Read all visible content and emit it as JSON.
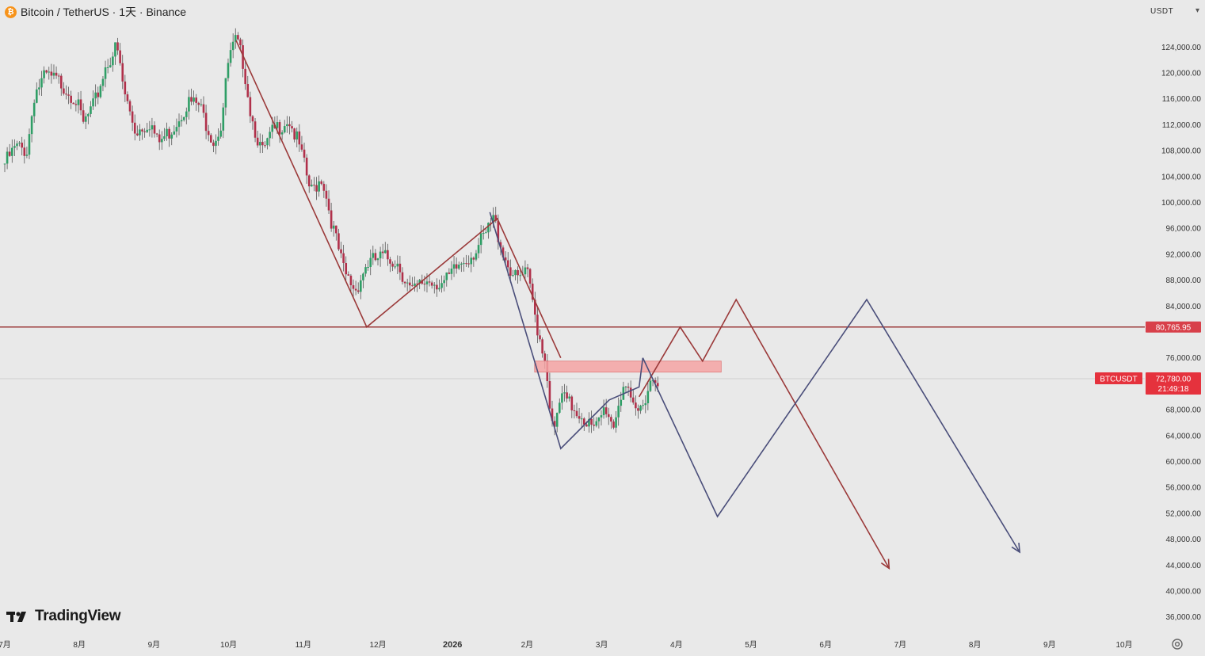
{
  "header": {
    "title": "Bitcoin / TetherUS · 1天 · Binance",
    "coin_icon": "bitcoin-icon",
    "coin_glyph": "₿"
  },
  "currency": {
    "label": "USDT",
    "caret": "▾"
  },
  "logo": {
    "text": "TradingView",
    "icon": "tradingview-logo-icon"
  },
  "chart_data": {
    "type": "candlestick",
    "symbol": "BTCUSDT",
    "exchange": "Binance",
    "interval": "1天",
    "quote_currency": "USDT",
    "y_axis": {
      "ticks": [
        124000,
        120000,
        116000,
        112000,
        108000,
        104000,
        100000,
        96000,
        92000,
        88000,
        84000,
        76000,
        68000,
        64000,
        60000,
        56000,
        52000,
        48000,
        44000,
        40000,
        36000
      ],
      "tick_labels": [
        "124,000.00",
        "120,000.00",
        "116,000.00",
        "112,000.00",
        "108,000.00",
        "104,000.00",
        "100,000.00",
        "96,000.00",
        "92,000.00",
        "88,000.00",
        "84,000.00",
        "76,000.00",
        "68,000.00",
        "64,000.00",
        "60,000.00",
        "56,000.00",
        "52,000.00",
        "48,000.00",
        "44,000.00",
        "40,000.00",
        "36,000.00"
      ],
      "range": [
        34000,
        130000
      ]
    },
    "x_axis": {
      "labels": [
        "7月",
        "8月",
        "9月",
        "10月",
        "11月",
        "12月",
        "2026",
        "2月",
        "3月",
        "4月",
        "5月",
        "6月",
        "7月",
        "8月",
        "9月",
        "10月"
      ],
      "bold_label": "2026",
      "range_months": [
        0,
        15.7
      ]
    },
    "price_series": [
      {
        "m": 0.0,
        "v": 106000
      },
      {
        "m": 0.15,
        "v": 108500
      },
      {
        "m": 0.3,
        "v": 108000
      },
      {
        "m": 0.4,
        "v": 117000
      },
      {
        "m": 0.55,
        "v": 119500
      },
      {
        "m": 0.75,
        "v": 118500
      },
      {
        "m": 0.95,
        "v": 116000
      },
      {
        "m": 1.05,
        "v": 112000
      },
      {
        "m": 1.2,
        "v": 115000
      },
      {
        "m": 1.35,
        "v": 121000
      },
      {
        "m": 1.5,
        "v": 124000
      },
      {
        "m": 1.6,
        "v": 117000
      },
      {
        "m": 1.75,
        "v": 111000
      },
      {
        "m": 1.95,
        "v": 112500
      },
      {
        "m": 2.05,
        "v": 109000
      },
      {
        "m": 2.25,
        "v": 111500
      },
      {
        "m": 2.45,
        "v": 115500
      },
      {
        "m": 2.6,
        "v": 115000
      },
      {
        "m": 2.8,
        "v": 109500
      },
      {
        "m": 2.9,
        "v": 112000
      },
      {
        "m": 3.0,
        "v": 122000
      },
      {
        "m": 3.1,
        "v": 125000
      },
      {
        "m": 3.2,
        "v": 121500
      },
      {
        "m": 3.3,
        "v": 113500
      },
      {
        "m": 3.45,
        "v": 107500
      },
      {
        "m": 3.6,
        "v": 111000
      },
      {
        "m": 3.8,
        "v": 113000
      },
      {
        "m": 3.95,
        "v": 108500
      },
      {
        "m": 4.1,
        "v": 101500
      },
      {
        "m": 4.25,
        "v": 104000
      },
      {
        "m": 4.4,
        "v": 96000
      },
      {
        "m": 4.55,
        "v": 89000
      },
      {
        "m": 4.7,
        "v": 86500
      },
      {
        "m": 4.85,
        "v": 90500
      },
      {
        "m": 5.05,
        "v": 91500
      },
      {
        "m": 5.25,
        "v": 91000
      },
      {
        "m": 5.45,
        "v": 86000
      },
      {
        "m": 5.65,
        "v": 88000
      },
      {
        "m": 5.9,
        "v": 87500
      },
      {
        "m": 6.1,
        "v": 90500
      },
      {
        "m": 6.3,
        "v": 92500
      },
      {
        "m": 6.45,
        "v": 95000
      },
      {
        "m": 6.55,
        "v": 97500
      },
      {
        "m": 6.7,
        "v": 91500
      },
      {
        "m": 6.85,
        "v": 88000
      },
      {
        "m": 7.0,
        "v": 89000
      },
      {
        "m": 7.15,
        "v": 80000
      },
      {
        "m": 7.25,
        "v": 75500
      },
      {
        "m": 7.35,
        "v": 63500
      },
      {
        "m": 7.45,
        "v": 70000
      },
      {
        "m": 7.6,
        "v": 68500
      },
      {
        "m": 7.75,
        "v": 67000
      },
      {
        "m": 7.9,
        "v": 64500
      },
      {
        "m": 8.05,
        "v": 68500
      },
      {
        "m": 8.15,
        "v": 65500
      },
      {
        "m": 8.3,
        "v": 72500
      },
      {
        "m": 8.4,
        "v": 68000
      },
      {
        "m": 8.5,
        "v": 67500
      },
      {
        "m": 8.65,
        "v": 72500
      },
      {
        "m": 8.75,
        "v": 73000
      }
    ],
    "horizontal_line": {
      "value": 80765.95,
      "label": "80,765.95",
      "color": "#9b3a3a"
    },
    "current_price": {
      "value": 72780.0,
      "symbol_label": "BTCUSDT",
      "label": "72,780.00",
      "countdown": "21:49:18",
      "color": "#e5323d"
    },
    "resistance_zone": {
      "from_month": 7.1,
      "to_month": 9.6,
      "low": 73800,
      "high": 75500,
      "color": "#f4a3a3"
    },
    "drawings": [
      {
        "name": "red-zigzag-pattern",
        "color": "#9b3a3a",
        "points": [
          [
            3.1,
            125000
          ],
          [
            4.85,
            80765
          ],
          [
            6.6,
            97500
          ],
          [
            7.45,
            76000
          ]
        ]
      },
      {
        "name": "blue-zigzag-pattern",
        "color": "#4a4e7a",
        "points": [
          [
            6.5,
            98500
          ],
          [
            7.45,
            62000
          ],
          [
            8.1,
            69500
          ],
          [
            8.5,
            71500
          ],
          [
            8.55,
            76000
          ]
        ]
      },
      {
        "name": "red-projection-path",
        "color": "#9b3a3a",
        "points": [
          [
            8.5,
            70000
          ],
          [
            9.05,
            80765
          ],
          [
            9.35,
            75500
          ],
          [
            9.8,
            85000
          ],
          [
            11.85,
            43500
          ]
        ],
        "arrow": true
      },
      {
        "name": "blue-projection-path",
        "color": "#4a4e7a",
        "points": [
          [
            8.55,
            76000
          ],
          [
            9.55,
            51500
          ],
          [
            11.55,
            85000
          ],
          [
            13.6,
            46000
          ]
        ],
        "arrow": true
      }
    ],
    "colors": {
      "up": "#2f9e66",
      "down": "#b0304a",
      "wick": "#555555",
      "grid_line": "#cfcfcf"
    }
  }
}
